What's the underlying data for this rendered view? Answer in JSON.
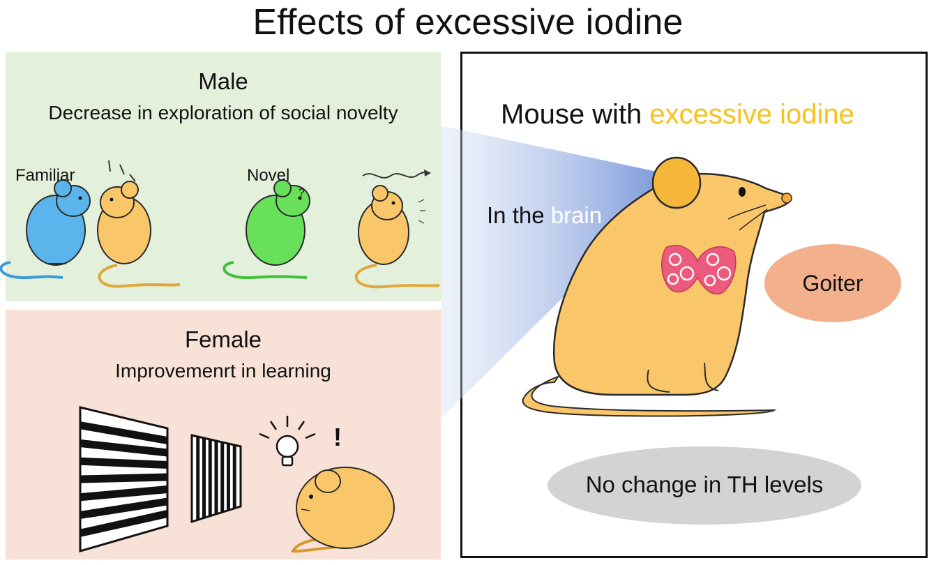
{
  "title": "Effects of excessive iodine",
  "male": {
    "heading": "Male",
    "subheading": "Decrease in exploration of social novelty",
    "familiar_label": "Familiar",
    "novel_label": "Novel",
    "question_mark": "?"
  },
  "female": {
    "heading": "Female",
    "subheading": "Improvemenrt in learning",
    "exclamation": "!"
  },
  "right": {
    "heading_prefix": "Mouse with ",
    "heading_highlight": "excessive iodine",
    "brain_prefix": "In the ",
    "brain_highlight": "brain",
    "goiter": "Goiter",
    "th_levels": "No change in TH levels"
  },
  "colors": {
    "male_bg": "#e3f0dc",
    "female_bg": "#f8e1d6",
    "highlight": "#f6c21c",
    "goiter_bubble": "#f2b08c",
    "th_bubble": "#d3d3d3",
    "mouse_body": "#f9c66a",
    "mouse_blue": "#5bb5ec",
    "mouse_green": "#68e05a",
    "thyroid": "#ec5a7e"
  }
}
